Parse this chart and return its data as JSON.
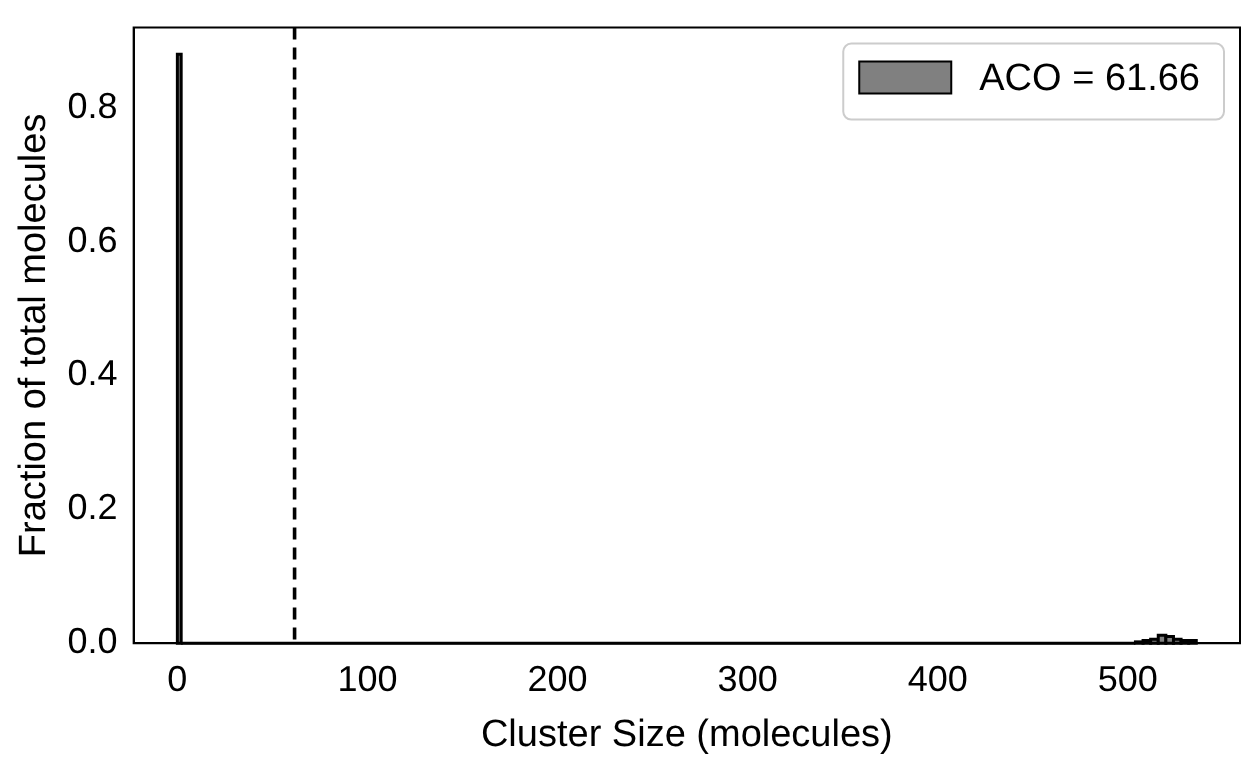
{
  "chart_data": {
    "type": "histogram",
    "xlabel": "Cluster Size (molecules)",
    "ylabel": "Fraction of total molecules",
    "bins": [
      0,
      2,
      504,
      508,
      512,
      516,
      520,
      524,
      528,
      532,
      536
    ],
    "series": [
      {
        "name": "ACO = 61.66",
        "color": "#808080",
        "values": [
          0.88,
          0,
          0.002,
          0.004,
          0.006,
          0.012,
          0.01,
          0.006,
          0.004,
          0.004
        ]
      }
    ],
    "xlim": [
      -23,
      559
    ],
    "xticks": [
      0,
      100,
      200,
      300,
      400,
      500
    ],
    "ylim": [
      0,
      0.92
    ],
    "yticks": [
      {
        "value": 0,
        "label": "0.0"
      },
      {
        "value": 0.2,
        "label": "0.2"
      },
      {
        "value": 0.4,
        "label": "0.4"
      },
      {
        "value": 0.6,
        "label": "0.6"
      },
      {
        "value": 0.8,
        "label": "0.8"
      }
    ],
    "ref_lines": [
      {
        "axis": "x",
        "value": 61.66,
        "color": "#000000",
        "line_style": "dashed"
      }
    ],
    "grid": false,
    "legend": "top right"
  }
}
